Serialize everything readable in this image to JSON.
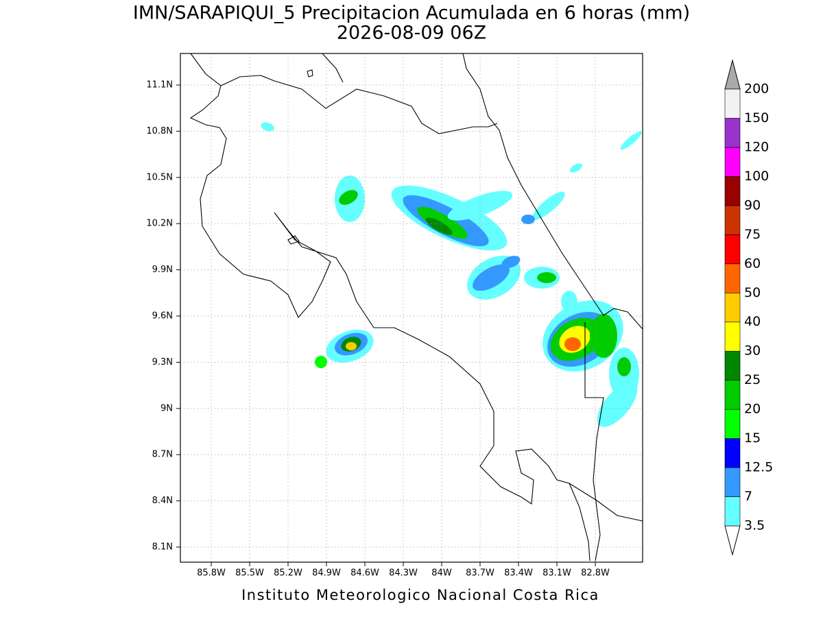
{
  "header": {
    "title": "IMN/SARAPIQUI_5 Precipitacion Acumulada en 6 horas (mm)",
    "subtitle": "2026-08-09 06Z"
  },
  "map": {
    "lon_ticks": [
      "85.8W",
      "85.5W",
      "85.2W",
      "84.9W",
      "84.6W",
      "84.3W",
      "84W",
      "83.7W",
      "83.4W",
      "83.1W",
      "82.8W"
    ],
    "lat_ticks": [
      "11.1N",
      "10.8N",
      "10.5N",
      "10.2N",
      "9.9N",
      "9.6N",
      "9.3N",
      "9N",
      "8.7N",
      "8.4N",
      "8.1N"
    ]
  },
  "colorbar": {
    "levels": [
      3.5,
      7,
      12.5,
      15,
      20,
      25,
      30,
      40,
      50,
      60,
      75,
      90,
      100,
      120,
      150,
      200
    ],
    "colors": [
      "#66ffff",
      "#3399ff",
      "#0000ff",
      "#00ff00",
      "#00cc00",
      "#008800",
      "#ffff00",
      "#ffcc00",
      "#ff6600",
      "#ff0000",
      "#cc3300",
      "#990000",
      "#ff00ff",
      "#9933cc",
      "#f2f2f2"
    ],
    "below_color": "#ffffff",
    "above_color": "#aaaaaa"
  },
  "footer": "Instituto Meteorologico Nacional Costa Rica"
}
